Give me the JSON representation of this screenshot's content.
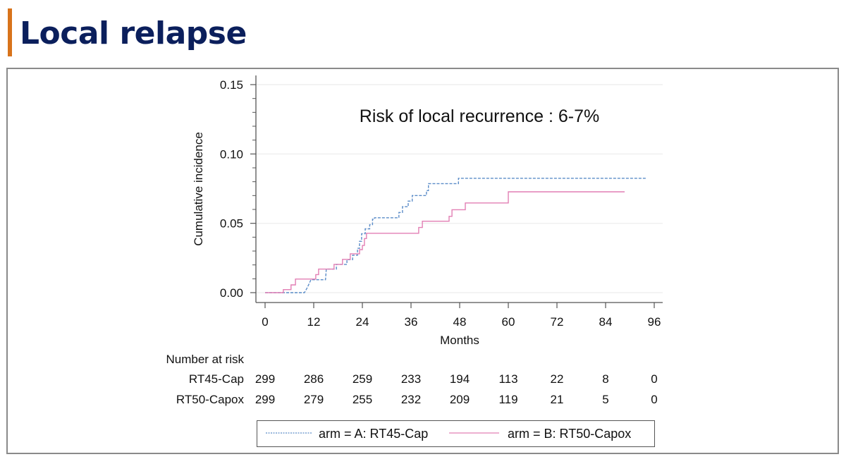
{
  "slide": {
    "title": "Local relapse",
    "accent_color": "#d8731b",
    "title_color": "#0b1f5c"
  },
  "chart_data": {
    "type": "line",
    "subtype": "step",
    "annotation": "Risk of local recurrence : 6-7%",
    "xlabel": "Months",
    "ylabel": "Cumulative incidence",
    "xlim": [
      0,
      96
    ],
    "ylim": [
      0,
      0.15
    ],
    "x_ticks": [
      0,
      12,
      24,
      36,
      48,
      60,
      72,
      84,
      96
    ],
    "x_tick_labels": [
      "0",
      "12",
      "24",
      "36",
      "48",
      "60",
      "72",
      "84",
      "96"
    ],
    "y_ticks": [
      0.0,
      0.05,
      0.1,
      0.15
    ],
    "y_tick_labels": [
      "0.00",
      "0.05",
      "0.10",
      "0.15"
    ],
    "y_minor_step": 0.01,
    "grid": "horizontal at major y ticks",
    "legend_position": "bottom",
    "series": [
      {
        "name": "arm = A: RT45-Cap",
        "color": "#5b8cc8",
        "style": "dashed",
        "points": [
          [
            0,
            0
          ],
          [
            9.7,
            0
          ],
          [
            10.3,
            0.003
          ],
          [
            10.8,
            0.006
          ],
          [
            11.3,
            0.0093
          ],
          [
            14.9,
            0.0093
          ],
          [
            15.0,
            0.0133
          ],
          [
            15.1,
            0.017
          ],
          [
            17.6,
            0.017
          ],
          [
            17.6,
            0.0204
          ],
          [
            20.2,
            0.0204
          ],
          [
            20.2,
            0.0238
          ],
          [
            21.6,
            0.0238
          ],
          [
            21.6,
            0.027
          ],
          [
            22.8,
            0.027
          ],
          [
            22.8,
            0.032
          ],
          [
            23.3,
            0.032
          ],
          [
            23.3,
            0.037
          ],
          [
            23.8,
            0.037
          ],
          [
            23.8,
            0.0425
          ],
          [
            24.7,
            0.0425
          ],
          [
            24.7,
            0.046
          ],
          [
            25.8,
            0.046
          ],
          [
            25.8,
            0.049
          ],
          [
            26.5,
            0.049
          ],
          [
            26.5,
            0.053
          ],
          [
            27.0,
            0.053
          ],
          [
            27.0,
            0.054
          ],
          [
            33.0,
            0.054
          ],
          [
            33.0,
            0.0578
          ],
          [
            33.9,
            0.0578
          ],
          [
            33.9,
            0.062
          ],
          [
            35.3,
            0.062
          ],
          [
            35.3,
            0.066
          ],
          [
            36.3,
            0.066
          ],
          [
            36.3,
            0.07
          ],
          [
            39.8,
            0.07
          ],
          [
            39.8,
            0.0736
          ],
          [
            40.3,
            0.0736
          ],
          [
            40.3,
            0.0786
          ],
          [
            47.7,
            0.0786
          ],
          [
            47.7,
            0.0825
          ],
          [
            94.0,
            0.0825
          ]
        ]
      },
      {
        "name": "arm = B: RT50-Capox",
        "color": "#e27fb4",
        "style": "solid",
        "points": [
          [
            0,
            0
          ],
          [
            4.5,
            0
          ],
          [
            4.5,
            0.0022
          ],
          [
            6.4,
            0.0022
          ],
          [
            6.4,
            0.0056
          ],
          [
            7.5,
            0.0056
          ],
          [
            7.5,
            0.0098
          ],
          [
            12.5,
            0.0098
          ],
          [
            12.5,
            0.013
          ],
          [
            13.2,
            0.013
          ],
          [
            13.2,
            0.017
          ],
          [
            17.0,
            0.017
          ],
          [
            17.0,
            0.0204
          ],
          [
            19.1,
            0.0204
          ],
          [
            19.1,
            0.024
          ],
          [
            21.0,
            0.024
          ],
          [
            21.0,
            0.028
          ],
          [
            23.3,
            0.028
          ],
          [
            23.3,
            0.031
          ],
          [
            24.0,
            0.031
          ],
          [
            24.0,
            0.034
          ],
          [
            24.5,
            0.034
          ],
          [
            24.5,
            0.039
          ],
          [
            25.0,
            0.039
          ],
          [
            25.0,
            0.0428
          ],
          [
            37.9,
            0.0428
          ],
          [
            37.9,
            0.047
          ],
          [
            38.8,
            0.047
          ],
          [
            38.8,
            0.0515
          ],
          [
            45.4,
            0.0515
          ],
          [
            45.4,
            0.055
          ],
          [
            46.1,
            0.055
          ],
          [
            46.1,
            0.0598
          ],
          [
            49.4,
            0.0598
          ],
          [
            49.4,
            0.0647
          ],
          [
            60.0,
            0.0647
          ],
          [
            60.0,
            0.0727
          ],
          [
            88.7,
            0.0727
          ]
        ]
      }
    ],
    "risk_table": {
      "title": "Number at risk",
      "rows": [
        {
          "label": "RT45-Cap",
          "values": [
            "299",
            "286",
            "259",
            "233",
            "194",
            "113",
            "22",
            "8",
            "0"
          ]
        },
        {
          "label": "RT50-Capox",
          "values": [
            "299",
            "279",
            "255",
            "232",
            "209",
            "119",
            "21",
            "5",
            "0"
          ]
        }
      ]
    },
    "legend": [
      {
        "label": "arm = A: RT45-Cap",
        "color": "#5b8cc8",
        "style": "dashed"
      },
      {
        "label": "arm = B: RT50-Capox",
        "color": "#e27fb4",
        "style": "solid"
      }
    ]
  }
}
